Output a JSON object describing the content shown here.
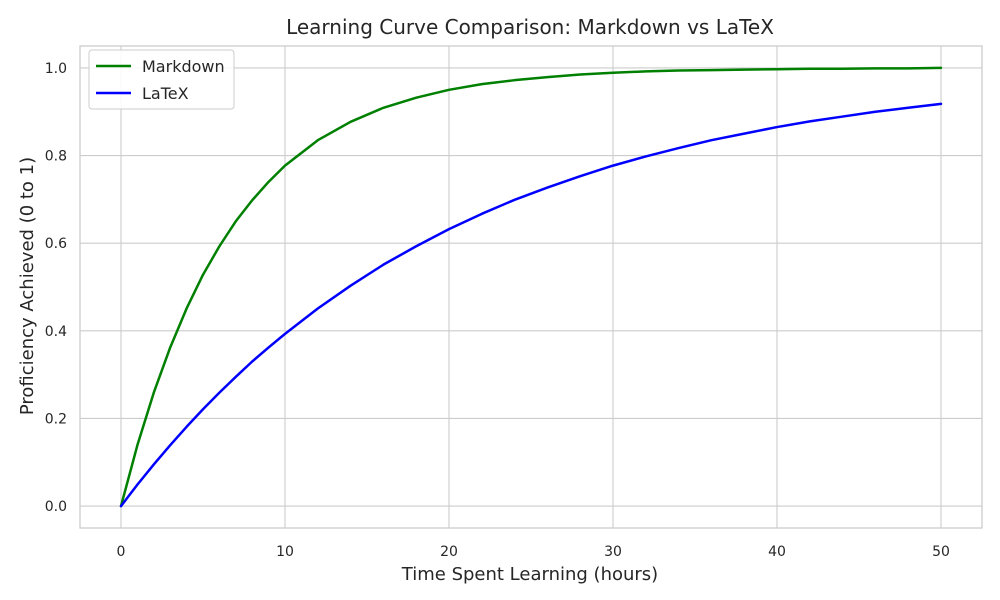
{
  "chart_data": {
    "type": "line",
    "title": "Learning Curve Comparison: Markdown vs LaTeX",
    "xlabel": "Time Spent Learning (hours)",
    "ylabel": "Proficiency Achieved (0 to 1)",
    "xlim": [
      -2.5,
      52.5
    ],
    "ylim": [
      -0.05,
      1.05
    ],
    "x_ticks": [
      0,
      10,
      20,
      30,
      40,
      50
    ],
    "x_tick_labels": [
      "0",
      "10",
      "20",
      "30",
      "40",
      "50"
    ],
    "y_ticks": [
      0.0,
      0.2,
      0.4,
      0.6,
      0.8,
      1.0
    ],
    "y_tick_labels": [
      "0.0",
      "0.2",
      "0.4",
      "0.6",
      "0.8",
      "1.0"
    ],
    "grid": true,
    "legend_position": "top-left",
    "x": [
      0,
      1,
      2,
      3,
      4,
      5,
      6,
      7,
      8,
      9,
      10,
      12,
      14,
      16,
      18,
      20,
      22,
      24,
      26,
      28,
      30,
      32,
      34,
      36,
      38,
      40,
      42,
      44,
      46,
      48,
      50
    ],
    "series": [
      {
        "name": "Markdown",
        "color": "#008000",
        "values": [
          0,
          0.139,
          0.259,
          0.362,
          0.451,
          0.528,
          0.593,
          0.65,
          0.698,
          0.74,
          0.777,
          0.835,
          0.877,
          0.909,
          0.932,
          0.95,
          0.963,
          0.972,
          0.979,
          0.985,
          0.989,
          0.992,
          0.994,
          0.995,
          0.996,
          0.997,
          0.998,
          0.998,
          0.999,
          0.999,
          1.0
        ]
      },
      {
        "name": "LaTeX",
        "color": "#0000ff",
        "values": [
          0,
          0.049,
          0.095,
          0.139,
          0.181,
          0.221,
          0.259,
          0.295,
          0.33,
          0.362,
          0.393,
          0.451,
          0.503,
          0.551,
          0.593,
          0.632,
          0.667,
          0.699,
          0.727,
          0.753,
          0.777,
          0.798,
          0.817,
          0.835,
          0.85,
          0.865,
          0.878,
          0.889,
          0.9,
          0.909,
          0.918
        ]
      }
    ]
  }
}
